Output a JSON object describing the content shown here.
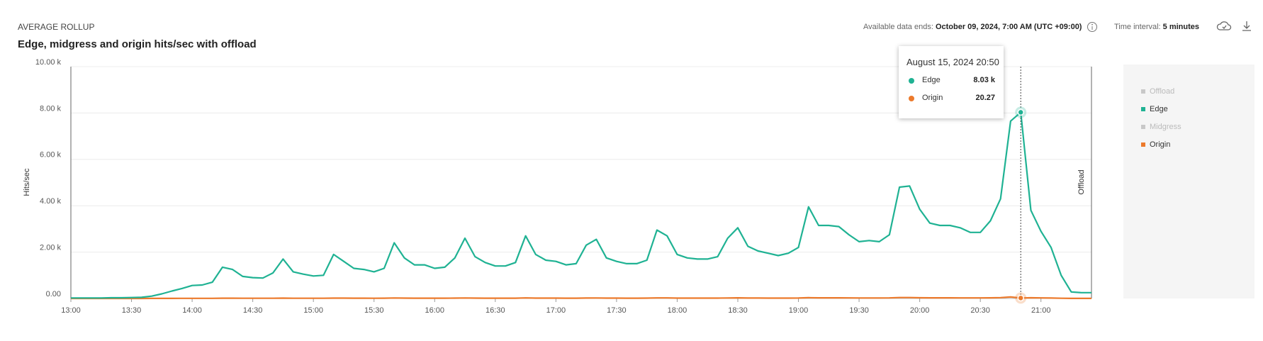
{
  "header": {
    "section": "AVERAGE ROLLUP",
    "data_ends_label": "Available data ends:",
    "data_ends_value": "October 09, 2024, 7:00 AM (UTC +09:00)",
    "interval_label": "Time interval:",
    "interval_value": "5 minutes"
  },
  "chart_data": {
    "type": "line",
    "title": "Edge, midgress and origin hits/sec with offload",
    "y_label": "Hits/sec",
    "y2_label": "Offload",
    "grid": true,
    "tooltip_title": "August 15, 2024 20:50",
    "x": [
      "13:00",
      "13:05",
      "13:10",
      "13:15",
      "13:20",
      "13:25",
      "13:30",
      "13:35",
      "13:40",
      "13:45",
      "13:50",
      "13:55",
      "14:00",
      "14:05",
      "14:10",
      "14:15",
      "14:20",
      "14:25",
      "14:30",
      "14:35",
      "14:40",
      "14:45",
      "14:50",
      "14:55",
      "15:00",
      "15:05",
      "15:10",
      "15:15",
      "15:20",
      "15:25",
      "15:30",
      "15:35",
      "15:40",
      "15:45",
      "15:50",
      "15:55",
      "16:00",
      "16:05",
      "16:10",
      "16:15",
      "16:20",
      "16:25",
      "16:30",
      "16:35",
      "16:40",
      "16:45",
      "16:50",
      "16:55",
      "17:00",
      "17:05",
      "17:10",
      "17:15",
      "17:20",
      "17:25",
      "17:30",
      "17:35",
      "17:40",
      "17:45",
      "17:50",
      "17:55",
      "18:00",
      "18:05",
      "18:10",
      "18:15",
      "18:20",
      "18:25",
      "18:30",
      "18:35",
      "18:40",
      "18:45",
      "18:50",
      "18:55",
      "19:00",
      "19:05",
      "19:10",
      "19:15",
      "19:20",
      "19:25",
      "19:30",
      "19:35",
      "19:40",
      "19:45",
      "19:50",
      "19:55",
      "20:00",
      "20:05",
      "20:10",
      "20:15",
      "20:20",
      "20:25",
      "20:30",
      "20:35",
      "20:40",
      "20:45",
      "20:50",
      "20:55",
      "21:00",
      "21:05",
      "21:10",
      "21:15",
      "21:20",
      "21:25"
    ],
    "xticks": [
      "13:00",
      "13:30",
      "14:00",
      "14:30",
      "15:00",
      "15:30",
      "16:00",
      "16:30",
      "17:00",
      "17:30",
      "18:00",
      "18:30",
      "19:00",
      "19:30",
      "20:00",
      "20:30",
      "21:00"
    ],
    "ylim": [
      0,
      10000
    ],
    "yticks": [
      {
        "value": 0,
        "label": "0.00"
      },
      {
        "value": 2000,
        "label": "2.00 k"
      },
      {
        "value": 4000,
        "label": "4.00 k"
      },
      {
        "value": 6000,
        "label": "6.00 k"
      },
      {
        "value": 8000,
        "label": "8.00 k"
      },
      {
        "value": 10000,
        "label": "10.00 k"
      }
    ],
    "series": [
      {
        "name": "Offload",
        "color": "#c8c8c8",
        "visible": false
      },
      {
        "name": "Edge",
        "color": "#1fb293",
        "visible": true,
        "values": [
          20,
          20,
          20,
          20,
          30,
          30,
          40,
          50,
          100,
          200,
          320,
          430,
          560,
          580,
          700,
          1350,
          1250,
          950,
          900,
          880,
          1100,
          1700,
          1150,
          1050,
          970,
          1000,
          1900,
          1600,
          1300,
          1250,
          1150,
          1300,
          2400,
          1750,
          1450,
          1450,
          1300,
          1350,
          1750,
          2600,
          1800,
          1550,
          1400,
          1400,
          1550,
          2700,
          1900,
          1650,
          1600,
          1450,
          1500,
          2300,
          2550,
          1750,
          1600,
          1500,
          1500,
          1650,
          2950,
          2700,
          1900,
          1750,
          1700,
          1700,
          1800,
          2600,
          3050,
          2250,
          2050,
          1950,
          1850,
          1950,
          2200,
          3950,
          3150,
          3150,
          3100,
          2750,
          2450,
          2500,
          2450,
          2750,
          4800,
          4850,
          3850,
          3250,
          3150,
          3150,
          3050,
          2850,
          2850,
          3350,
          4300,
          7650,
          8030,
          3800,
          2900,
          2200,
          1000,
          280,
          250,
          250
        ],
        "value_labels": [
          null,
          null,
          null,
          null,
          null,
          null,
          null,
          null,
          null,
          null,
          null,
          null,
          null,
          null,
          null,
          null,
          null,
          null,
          null,
          null,
          null,
          null,
          null,
          null,
          null,
          null,
          null,
          null,
          null,
          null,
          null,
          null,
          null,
          null,
          null,
          null,
          null,
          null,
          null,
          null,
          null,
          null,
          null,
          null,
          null,
          null,
          null,
          null,
          null,
          null,
          null,
          null,
          null,
          null,
          null,
          null,
          null,
          null,
          null,
          null,
          null,
          null,
          null,
          null,
          null,
          null,
          null,
          null,
          null,
          null,
          null,
          null,
          null,
          null,
          null,
          null,
          null,
          null,
          null,
          null,
          null,
          null,
          null,
          null,
          null,
          null,
          null,
          null,
          null,
          null,
          null,
          null,
          null,
          null,
          "8.03 k",
          null,
          null,
          null,
          null,
          null,
          null,
          null
        ]
      },
      {
        "name": "Midgress",
        "color": "#c8c8c8",
        "visible": false
      },
      {
        "name": "Origin",
        "color": "#ec7a2c",
        "visible": true,
        "values": [
          1,
          1,
          1,
          1,
          1,
          1,
          1,
          1,
          2,
          3,
          4,
          5,
          6,
          6,
          7,
          12,
          11,
          9,
          8,
          8,
          10,
          15,
          10,
          9,
          9,
          9,
          16,
          14,
          11,
          11,
          10,
          11,
          20,
          15,
          12,
          12,
          11,
          11,
          15,
          22,
          15,
          13,
          12,
          12,
          13,
          23,
          16,
          14,
          14,
          12,
          13,
          19,
          21,
          15,
          14,
          13,
          13,
          14,
          25,
          23,
          16,
          15,
          14,
          14,
          15,
          22,
          26,
          19,
          17,
          16,
          16,
          16,
          18,
          33,
          26,
          26,
          26,
          23,
          20,
          21,
          20,
          23,
          40,
          40,
          32,
          27,
          26,
          26,
          25,
          24,
          24,
          28,
          36,
          64,
          20.27,
          32,
          24,
          18,
          8,
          2,
          2,
          2
        ],
        "value_labels": [
          null,
          null,
          null,
          null,
          null,
          null,
          null,
          null,
          null,
          null,
          null,
          null,
          null,
          null,
          null,
          null,
          null,
          null,
          null,
          null,
          null,
          null,
          null,
          null,
          null,
          null,
          null,
          null,
          null,
          null,
          null,
          null,
          null,
          null,
          null,
          null,
          null,
          null,
          null,
          null,
          null,
          null,
          null,
          null,
          null,
          null,
          null,
          null,
          null,
          null,
          null,
          null,
          null,
          null,
          null,
          null,
          null,
          null,
          null,
          null,
          null,
          null,
          null,
          null,
          null,
          null,
          null,
          null,
          null,
          null,
          null,
          null,
          null,
          null,
          null,
          null,
          null,
          null,
          null,
          null,
          null,
          null,
          null,
          null,
          null,
          null,
          null,
          null,
          null,
          null,
          null,
          null,
          null,
          null,
          "20.27",
          null,
          null,
          null,
          null,
          null,
          null,
          null
        ]
      }
    ]
  }
}
